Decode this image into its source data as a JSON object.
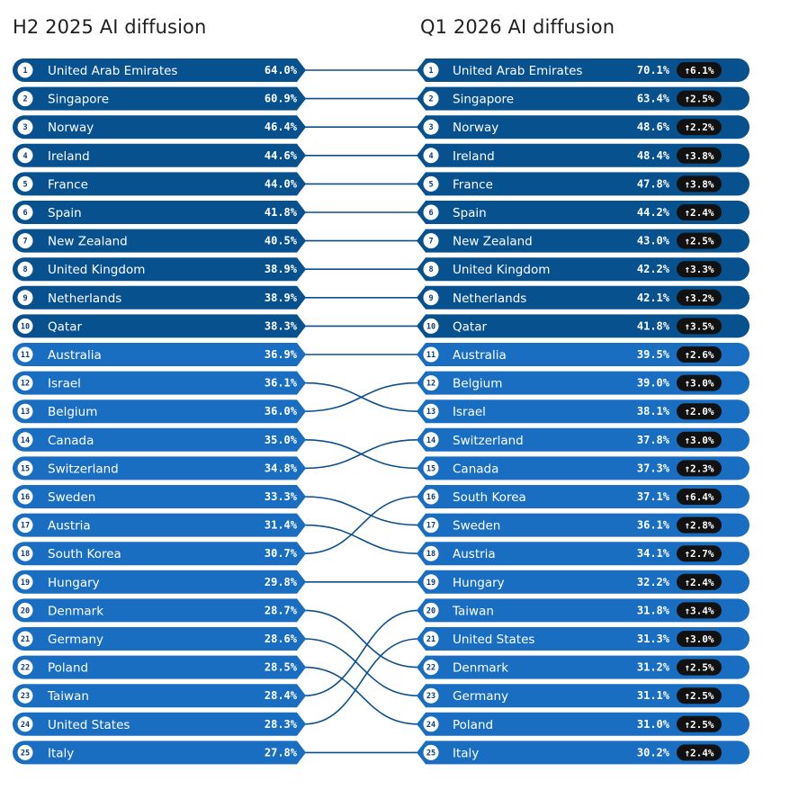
{
  "chart_data": {
    "type": "bump",
    "left_title": "H2 2025 AI diffusion",
    "right_title": "Q1 2026 AI diffusion",
    "colors": {
      "dark": "#08518f",
      "light": "#1a6ec1",
      "connector": "#0d4f8c",
      "badge": "#111111"
    },
    "left": [
      {
        "rank": 1,
        "country": "United Arab Emirates",
        "value": "64.0%"
      },
      {
        "rank": 2,
        "country": "Singapore",
        "value": "60.9%"
      },
      {
        "rank": 3,
        "country": "Norway",
        "value": "46.4%"
      },
      {
        "rank": 4,
        "country": "Ireland",
        "value": "44.6%"
      },
      {
        "rank": 5,
        "country": "France",
        "value": "44.0%"
      },
      {
        "rank": 6,
        "country": "Spain",
        "value": "41.8%"
      },
      {
        "rank": 7,
        "country": "New Zealand",
        "value": "40.5%"
      },
      {
        "rank": 8,
        "country": "United Kingdom",
        "value": "38.9%"
      },
      {
        "rank": 9,
        "country": "Netherlands",
        "value": "38.9%"
      },
      {
        "rank": 10,
        "country": "Qatar",
        "value": "38.3%"
      },
      {
        "rank": 11,
        "country": "Australia",
        "value": "36.9%"
      },
      {
        "rank": 12,
        "country": "Israel",
        "value": "36.1%"
      },
      {
        "rank": 13,
        "country": "Belgium",
        "value": "36.0%"
      },
      {
        "rank": 14,
        "country": "Canada",
        "value": "35.0%"
      },
      {
        "rank": 15,
        "country": "Switzerland",
        "value": "34.8%"
      },
      {
        "rank": 16,
        "country": "Sweden",
        "value": "33.3%"
      },
      {
        "rank": 17,
        "country": "Austria",
        "value": "31.4%"
      },
      {
        "rank": 18,
        "country": "South Korea",
        "value": "30.7%"
      },
      {
        "rank": 19,
        "country": "Hungary",
        "value": "29.8%"
      },
      {
        "rank": 20,
        "country": "Denmark",
        "value": "28.7%"
      },
      {
        "rank": 21,
        "country": "Germany",
        "value": "28.6%"
      },
      {
        "rank": 22,
        "country": "Poland",
        "value": "28.5%"
      },
      {
        "rank": 23,
        "country": "Taiwan",
        "value": "28.4%"
      },
      {
        "rank": 24,
        "country": "United States",
        "value": "28.3%"
      },
      {
        "rank": 25,
        "country": "Italy",
        "value": "27.8%"
      }
    ],
    "right": [
      {
        "rank": 1,
        "country": "United Arab Emirates",
        "value": "70.1%",
        "change": "↑6.1%"
      },
      {
        "rank": 2,
        "country": "Singapore",
        "value": "63.4%",
        "change": "↑2.5%"
      },
      {
        "rank": 3,
        "country": "Norway",
        "value": "48.6%",
        "change": "↑2.2%"
      },
      {
        "rank": 4,
        "country": "Ireland",
        "value": "48.4%",
        "change": "↑3.8%"
      },
      {
        "rank": 5,
        "country": "France",
        "value": "47.8%",
        "change": "↑3.8%"
      },
      {
        "rank": 6,
        "country": "Spain",
        "value": "44.2%",
        "change": "↑2.4%"
      },
      {
        "rank": 7,
        "country": "New Zealand",
        "value": "43.0%",
        "change": "↑2.5%"
      },
      {
        "rank": 8,
        "country": "United Kingdom",
        "value": "42.2%",
        "change": "↑3.3%"
      },
      {
        "rank": 9,
        "country": "Netherlands",
        "value": "42.1%",
        "change": "↑3.2%"
      },
      {
        "rank": 10,
        "country": "Qatar",
        "value": "41.8%",
        "change": "↑3.5%"
      },
      {
        "rank": 11,
        "country": "Australia",
        "value": "39.5%",
        "change": "↑2.6%"
      },
      {
        "rank": 12,
        "country": "Belgium",
        "value": "39.0%",
        "change": "↑3.0%"
      },
      {
        "rank": 13,
        "country": "Israel",
        "value": "38.1%",
        "change": "↑2.0%"
      },
      {
        "rank": 14,
        "country": "Switzerland",
        "value": "37.8%",
        "change": "↑3.0%"
      },
      {
        "rank": 15,
        "country": "Canada",
        "value": "37.3%",
        "change": "↑2.3%"
      },
      {
        "rank": 16,
        "country": "South Korea",
        "value": "37.1%",
        "change": "↑6.4%"
      },
      {
        "rank": 17,
        "country": "Sweden",
        "value": "36.1%",
        "change": "↑2.8%"
      },
      {
        "rank": 18,
        "country": "Austria",
        "value": "34.1%",
        "change": "↑2.7%"
      },
      {
        "rank": 19,
        "country": "Hungary",
        "value": "32.2%",
        "change": "↑2.4%"
      },
      {
        "rank": 20,
        "country": "Taiwan",
        "value": "31.8%",
        "change": "↑3.4%"
      },
      {
        "rank": 21,
        "country": "United States",
        "value": "31.3%",
        "change": "↑3.0%"
      },
      {
        "rank": 22,
        "country": "Denmark",
        "value": "31.2%",
        "change": "↑2.5%"
      },
      {
        "rank": 23,
        "country": "Germany",
        "value": "31.1%",
        "change": "↑2.5%"
      },
      {
        "rank": 24,
        "country": "Poland",
        "value": "31.0%",
        "change": "↑2.5%"
      },
      {
        "rank": 25,
        "country": "Italy",
        "value": "30.2%",
        "change": "↑2.4%"
      }
    ]
  }
}
